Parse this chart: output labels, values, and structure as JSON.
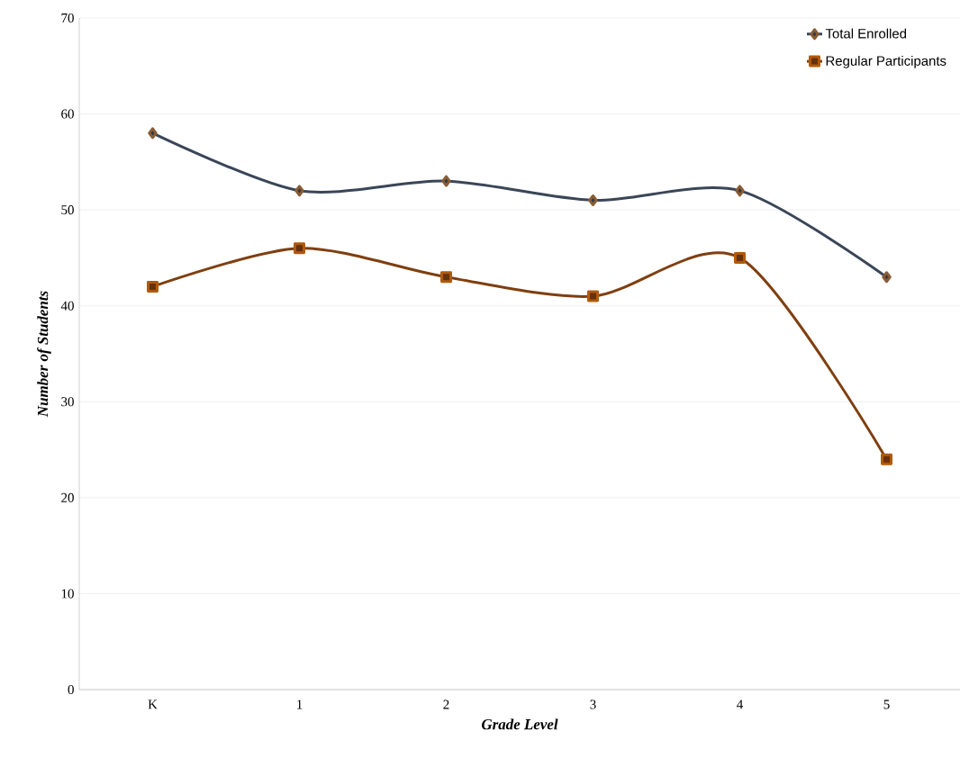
{
  "chart_data": {
    "type": "line",
    "xlabel": "Grade Level",
    "ylabel": "Number of Students",
    "categories": [
      "K",
      "1",
      "2",
      "3",
      "4",
      "5"
    ],
    "series": [
      {
        "name": "Total Enrolled",
        "color": "#3a4658",
        "marker": "diamond",
        "values": [
          58,
          52,
          53,
          51,
          52,
          43
        ]
      },
      {
        "name": "Regular Participants",
        "color": "#7f3f0f",
        "marker": "square",
        "values": [
          42,
          46,
          43,
          41,
          45,
          24
        ]
      }
    ],
    "ylim": [
      0,
      70
    ],
    "yticks": [
      0,
      10,
      20,
      30,
      40,
      50,
      60,
      70
    ],
    "grid": "y",
    "legend": "top right",
    "line_style": "solid"
  }
}
